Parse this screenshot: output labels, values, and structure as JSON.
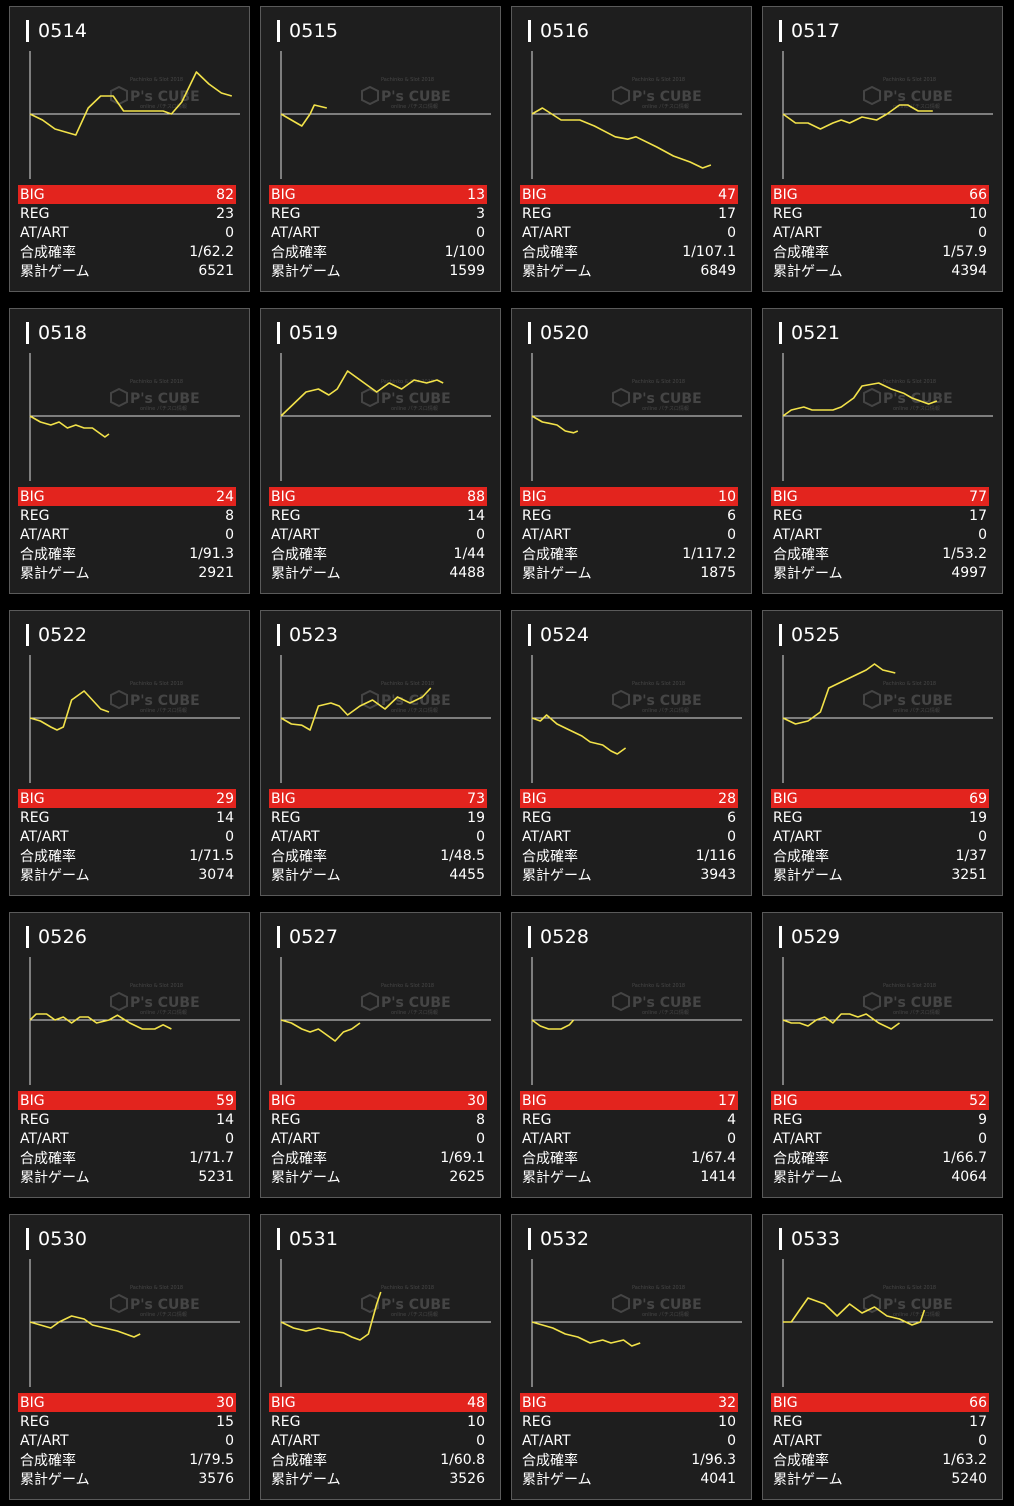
{
  "labels": {
    "big": "BIG",
    "reg": "REG",
    "at": "AT/ART",
    "prob": "合成確率",
    "games": "累計ゲーム"
  },
  "watermark": {
    "brand": "P's CUBE",
    "small_top": "Pachinko & Slot 2018",
    "small_bottom": "online パチスロ情報"
  },
  "colors": {
    "big_bar": "#e3241e",
    "line": "#f2e24a",
    "card_bg": "#1e1e1e"
  },
  "machines": [
    {
      "id": "0514",
      "big": "82",
      "reg": "23",
      "at": "0",
      "prob": "1/62.2",
      "games": "6521",
      "graph": [
        [
          0,
          0
        ],
        [
          0.06,
          -0.1
        ],
        [
          0.12,
          -0.25
        ],
        [
          0.22,
          -0.35
        ],
        [
          0.28,
          0.1
        ],
        [
          0.34,
          0.3
        ],
        [
          0.4,
          0.3
        ],
        [
          0.45,
          0.05
        ],
        [
          0.54,
          0.05
        ],
        [
          0.64,
          0.05
        ],
        [
          0.68,
          0
        ],
        [
          0.73,
          0.2
        ],
        [
          0.8,
          0.7
        ],
        [
          0.86,
          0.5
        ],
        [
          0.92,
          0.35
        ],
        [
          0.97,
          0.3
        ]
      ]
    },
    {
      "id": "0515",
      "big": "13",
      "reg": "3",
      "at": "0",
      "prob": "1/100",
      "games": "1599",
      "graph": [
        [
          0,
          0
        ],
        [
          0.05,
          -0.1
        ],
        [
          0.1,
          -0.2
        ],
        [
          0.14,
          0
        ],
        [
          0.16,
          0.15
        ],
        [
          0.22,
          0.1
        ]
      ]
    },
    {
      "id": "0516",
      "big": "47",
      "reg": "17",
      "at": "0",
      "prob": "1/107.1",
      "games": "6849",
      "graph": [
        [
          0,
          0
        ],
        [
          0.05,
          0.1
        ],
        [
          0.14,
          -0.1
        ],
        [
          0.23,
          -0.1
        ],
        [
          0.3,
          -0.2
        ],
        [
          0.4,
          -0.38
        ],
        [
          0.46,
          -0.42
        ],
        [
          0.5,
          -0.38
        ],
        [
          0.6,
          -0.55
        ],
        [
          0.68,
          -0.7
        ],
        [
          0.76,
          -0.8
        ],
        [
          0.82,
          -0.9
        ],
        [
          0.86,
          -0.85
        ]
      ]
    },
    {
      "id": "0517",
      "big": "66",
      "reg": "10",
      "at": "0",
      "prob": "1/57.9",
      "games": "4394",
      "graph": [
        [
          0,
          0
        ],
        [
          0.06,
          -0.15
        ],
        [
          0.12,
          -0.15
        ],
        [
          0.18,
          -0.25
        ],
        [
          0.24,
          -0.15
        ],
        [
          0.28,
          -0.1
        ],
        [
          0.32,
          -0.15
        ],
        [
          0.38,
          -0.05
        ],
        [
          0.45,
          -0.1
        ],
        [
          0.5,
          0
        ],
        [
          0.56,
          0.15
        ],
        [
          0.6,
          0.15
        ],
        [
          0.65,
          0.05
        ],
        [
          0.72,
          0.05
        ]
      ]
    },
    {
      "id": "0518",
      "big": "24",
      "reg": "8",
      "at": "0",
      "prob": "1/91.3",
      "games": "2921",
      "graph": [
        [
          0,
          0
        ],
        [
          0.05,
          -0.1
        ],
        [
          0.1,
          -0.15
        ],
        [
          0.14,
          -0.1
        ],
        [
          0.18,
          -0.2
        ],
        [
          0.22,
          -0.15
        ],
        [
          0.26,
          -0.2
        ],
        [
          0.3,
          -0.2
        ],
        [
          0.34,
          -0.3
        ],
        [
          0.36,
          -0.35
        ],
        [
          0.38,
          -0.3
        ]
      ]
    },
    {
      "id": "0519",
      "big": "88",
      "reg": "14",
      "at": "0",
      "prob": "1/44",
      "games": "4488",
      "graph": [
        [
          0,
          0
        ],
        [
          0.06,
          0.2
        ],
        [
          0.12,
          0.4
        ],
        [
          0.18,
          0.45
        ],
        [
          0.23,
          0.35
        ],
        [
          0.27,
          0.45
        ],
        [
          0.32,
          0.75
        ],
        [
          0.4,
          0.55
        ],
        [
          0.46,
          0.4
        ],
        [
          0.52,
          0.55
        ],
        [
          0.58,
          0.45
        ],
        [
          0.64,
          0.6
        ],
        [
          0.7,
          0.55
        ],
        [
          0.75,
          0.6
        ],
        [
          0.78,
          0.55
        ]
      ]
    },
    {
      "id": "0520",
      "big": "10",
      "reg": "6",
      "at": "0",
      "prob": "1/117.2",
      "games": "1875",
      "graph": [
        [
          0,
          0
        ],
        [
          0.05,
          -0.1
        ],
        [
          0.08,
          -0.12
        ],
        [
          0.12,
          -0.15
        ],
        [
          0.16,
          -0.25
        ],
        [
          0.2,
          -0.28
        ],
        [
          0.22,
          -0.25
        ]
      ]
    },
    {
      "id": "0521",
      "big": "77",
      "reg": "17",
      "at": "0",
      "prob": "1/53.2",
      "games": "4997",
      "graph": [
        [
          0,
          0
        ],
        [
          0.04,
          0.1
        ],
        [
          0.1,
          0.15
        ],
        [
          0.14,
          0.1
        ],
        [
          0.24,
          0.1
        ],
        [
          0.28,
          0.15
        ],
        [
          0.34,
          0.3
        ],
        [
          0.38,
          0.5
        ],
        [
          0.46,
          0.55
        ],
        [
          0.52,
          0.45
        ],
        [
          0.58,
          0.38
        ],
        [
          0.62,
          0.3
        ],
        [
          0.66,
          0.25
        ],
        [
          0.7,
          0.2
        ],
        [
          0.74,
          0.25
        ]
      ]
    },
    {
      "id": "0522",
      "big": "29",
      "reg": "14",
      "at": "0",
      "prob": "1/71.5",
      "games": "3074",
      "graph": [
        [
          0,
          0
        ],
        [
          0.05,
          -0.05
        ],
        [
          0.1,
          -0.15
        ],
        [
          0.13,
          -0.2
        ],
        [
          0.16,
          -0.15
        ],
        [
          0.2,
          0.3
        ],
        [
          0.26,
          0.45
        ],
        [
          0.3,
          0.3
        ],
        [
          0.34,
          0.15
        ],
        [
          0.38,
          0.1
        ]
      ]
    },
    {
      "id": "0523",
      "big": "73",
      "reg": "19",
      "at": "0",
      "prob": "1/48.5",
      "games": "4455",
      "graph": [
        [
          0,
          0
        ],
        [
          0.05,
          -0.1
        ],
        [
          0.1,
          -0.12
        ],
        [
          0.14,
          -0.2
        ],
        [
          0.18,
          0.2
        ],
        [
          0.24,
          0.25
        ],
        [
          0.28,
          0.2
        ],
        [
          0.32,
          0.05
        ],
        [
          0.38,
          0.2
        ],
        [
          0.44,
          0.3
        ],
        [
          0.5,
          0.15
        ],
        [
          0.56,
          0.35
        ],
        [
          0.62,
          0.25
        ],
        [
          0.68,
          0.35
        ],
        [
          0.72,
          0.5
        ]
      ]
    },
    {
      "id": "0524",
      "big": "28",
      "reg": "6",
      "at": "0",
      "prob": "1/116",
      "games": "3943",
      "graph": [
        [
          0,
          0
        ],
        [
          0.04,
          -0.05
        ],
        [
          0.07,
          0.05
        ],
        [
          0.12,
          -0.1
        ],
        [
          0.18,
          -0.2
        ],
        [
          0.24,
          -0.3
        ],
        [
          0.28,
          -0.4
        ],
        [
          0.34,
          -0.45
        ],
        [
          0.38,
          -0.55
        ],
        [
          0.41,
          -0.6
        ],
        [
          0.45,
          -0.5
        ]
      ]
    },
    {
      "id": "0525",
      "big": "69",
      "reg": "19",
      "at": "0",
      "prob": "1/37",
      "games": "3251",
      "graph": [
        [
          0,
          0
        ],
        [
          0.06,
          -0.1
        ],
        [
          0.12,
          -0.05
        ],
        [
          0.18,
          0.1
        ],
        [
          0.22,
          0.5
        ],
        [
          0.28,
          0.6
        ],
        [
          0.34,
          0.7
        ],
        [
          0.4,
          0.8
        ],
        [
          0.44,
          0.9
        ],
        [
          0.48,
          0.8
        ],
        [
          0.54,
          0.75
        ]
      ]
    },
    {
      "id": "0526",
      "big": "59",
      "reg": "14",
      "at": "0",
      "prob": "1/71.7",
      "games": "5231",
      "graph": [
        [
          0,
          0
        ],
        [
          0.03,
          0.1
        ],
        [
          0.08,
          0.1
        ],
        [
          0.12,
          0
        ],
        [
          0.16,
          0.05
        ],
        [
          0.2,
          -0.05
        ],
        [
          0.24,
          0.05
        ],
        [
          0.28,
          0.05
        ],
        [
          0.32,
          -0.05
        ],
        [
          0.38,
          0
        ],
        [
          0.42,
          0.08
        ],
        [
          0.48,
          -0.05
        ],
        [
          0.54,
          -0.15
        ],
        [
          0.6,
          -0.15
        ],
        [
          0.64,
          -0.08
        ],
        [
          0.68,
          -0.15
        ]
      ]
    },
    {
      "id": "0527",
      "big": "30",
      "reg": "8",
      "at": "0",
      "prob": "1/69.1",
      "games": "2625",
      "graph": [
        [
          0,
          0
        ],
        [
          0.05,
          -0.05
        ],
        [
          0.1,
          -0.15
        ],
        [
          0.14,
          -0.2
        ],
        [
          0.18,
          -0.15
        ],
        [
          0.22,
          -0.25
        ],
        [
          0.26,
          -0.35
        ],
        [
          0.3,
          -0.2
        ],
        [
          0.34,
          -0.15
        ],
        [
          0.38,
          -0.05
        ]
      ]
    },
    {
      "id": "0528",
      "big": "17",
      "reg": "4",
      "at": "0",
      "prob": "1/67.4",
      "games": "1414",
      "graph": [
        [
          0,
          0
        ],
        [
          0.04,
          -0.1
        ],
        [
          0.08,
          -0.15
        ],
        [
          0.14,
          -0.15
        ],
        [
          0.18,
          -0.08
        ],
        [
          0.2,
          0
        ]
      ]
    },
    {
      "id": "0529",
      "big": "52",
      "reg": "9",
      "at": "0",
      "prob": "1/66.7",
      "games": "4064",
      "graph": [
        [
          0,
          0
        ],
        [
          0.04,
          -0.05
        ],
        [
          0.08,
          -0.05
        ],
        [
          0.12,
          -0.1
        ],
        [
          0.16,
          0
        ],
        [
          0.2,
          0.05
        ],
        [
          0.24,
          -0.05
        ],
        [
          0.28,
          0.1
        ],
        [
          0.32,
          0.1
        ],
        [
          0.36,
          0.05
        ],
        [
          0.4,
          0.1
        ],
        [
          0.46,
          -0.05
        ],
        [
          0.52,
          -0.15
        ],
        [
          0.54,
          -0.1
        ],
        [
          0.56,
          -0.05
        ]
      ]
    },
    {
      "id": "0530",
      "big": "30",
      "reg": "15",
      "at": "0",
      "prob": "1/79.5",
      "games": "3576",
      "graph": [
        [
          0,
          0
        ],
        [
          0.05,
          -0.05
        ],
        [
          0.1,
          -0.1
        ],
        [
          0.14,
          0
        ],
        [
          0.2,
          0.1
        ],
        [
          0.26,
          0.05
        ],
        [
          0.3,
          -0.05
        ],
        [
          0.36,
          -0.1
        ],
        [
          0.42,
          -0.15
        ],
        [
          0.46,
          -0.2
        ],
        [
          0.5,
          -0.25
        ],
        [
          0.53,
          -0.2
        ]
      ]
    },
    {
      "id": "0531",
      "big": "48",
      "reg": "10",
      "at": "0",
      "prob": "1/60.8",
      "games": "3526",
      "graph": [
        [
          0,
          0
        ],
        [
          0.06,
          -0.1
        ],
        [
          0.12,
          -0.15
        ],
        [
          0.18,
          -0.1
        ],
        [
          0.24,
          -0.15
        ],
        [
          0.3,
          -0.18
        ],
        [
          0.34,
          -0.25
        ],
        [
          0.38,
          -0.3
        ],
        [
          0.42,
          -0.2
        ],
        [
          0.46,
          0.3
        ],
        [
          0.48,
          0.5
        ]
      ]
    },
    {
      "id": "0532",
      "big": "32",
      "reg": "10",
      "at": "0",
      "prob": "1/96.3",
      "games": "4041",
      "graph": [
        [
          0,
          0
        ],
        [
          0.05,
          -0.05
        ],
        [
          0.1,
          -0.1
        ],
        [
          0.16,
          -0.2
        ],
        [
          0.22,
          -0.25
        ],
        [
          0.28,
          -0.35
        ],
        [
          0.34,
          -0.3
        ],
        [
          0.38,
          -0.35
        ],
        [
          0.44,
          -0.3
        ],
        [
          0.48,
          -0.4
        ],
        [
          0.52,
          -0.35
        ]
      ]
    },
    {
      "id": "0533",
      "big": "66",
      "reg": "17",
      "at": "0",
      "prob": "1/63.2",
      "games": "5240",
      "graph": [
        [
          0,
          0
        ],
        [
          0.04,
          0
        ],
        [
          0.08,
          0.2
        ],
        [
          0.12,
          0.4
        ],
        [
          0.16,
          0.35
        ],
        [
          0.2,
          0.3
        ],
        [
          0.26,
          0.1
        ],
        [
          0.32,
          0.3
        ],
        [
          0.38,
          0.15
        ],
        [
          0.44,
          0.25
        ],
        [
          0.5,
          0.1
        ],
        [
          0.56,
          0.05
        ],
        [
          0.62,
          -0.05
        ],
        [
          0.66,
          0
        ],
        [
          0.68,
          0.2
        ]
      ]
    }
  ]
}
